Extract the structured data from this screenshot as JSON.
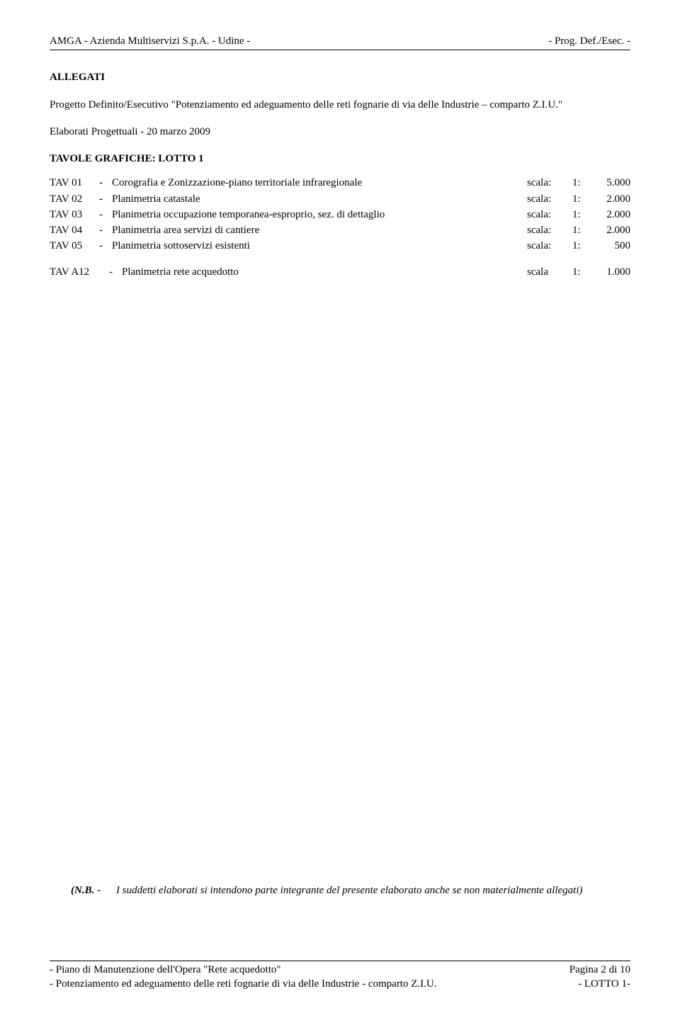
{
  "header": {
    "left": "AMGA - Azienda Multiservizi S.p.A. - Udine -",
    "right": "- Prog. Def./Esec. -"
  },
  "section_title": "ALLEGATI",
  "intro": "Progetto Definito/Esecutivo \"Potenziamento ed adeguamento delle reti fognarie di via delle Industrie – comparto Z.I.U.\"",
  "subtitle": "Elaborati Progettuali  - 20 marzo 2009",
  "lotto_title": "TAVOLE GRAFICHE: LOTTO 1",
  "tav_rows": [
    {
      "code": "TAV  01",
      "dash": "-",
      "desc": "Corografia  e Zonizzazione-piano territoriale infraregionale",
      "scala": "scala:",
      "colon": "1:",
      "val": "5.000"
    },
    {
      "code": "TAV  02",
      "dash": "-",
      "desc": "Planimetria catastale",
      "scala": "scala:",
      "colon": "1:",
      "val": "2.000"
    },
    {
      "code": "TAV  03",
      "dash": "-",
      "desc": "Planimetria occupazione temporanea-esproprio, sez. di dettaglio",
      "scala": "scala:",
      "colon": "1:",
      "val": "2.000"
    },
    {
      "code": "TAV  04",
      "dash": "-",
      "desc": "Planimetria area servizi di cantiere",
      "scala": "scala:",
      "colon": "1:",
      "val": "2.000"
    },
    {
      "code": "TAV  05",
      "dash": "-",
      "desc": "Planimetria sottoservizi esistenti",
      "scala": "scala:",
      "colon": "1:",
      "val": "500"
    }
  ],
  "tav_extra": {
    "code": "TAV  A12",
    "dash": "-",
    "desc": "Planimetria rete acquedotto",
    "scala": "scala",
    "colon": "1:",
    "val": "1.000"
  },
  "nb": {
    "label": "(N.B.  -",
    "text": "I suddetti elaborati si intendono parte integrante del presente elaborato anche se non materialmente allegati)"
  },
  "footer": {
    "l1_left": "- Piano di Manutenzione dell'Opera \"Rete acquedotto\"",
    "l1_right": "Pagina 2 di 10",
    "l2_left": "- Potenziamento ed adeguamento delle reti fognarie di via delle Industrie - comparto Z.I.U.",
    "l2_right": "- LOTTO 1-"
  }
}
